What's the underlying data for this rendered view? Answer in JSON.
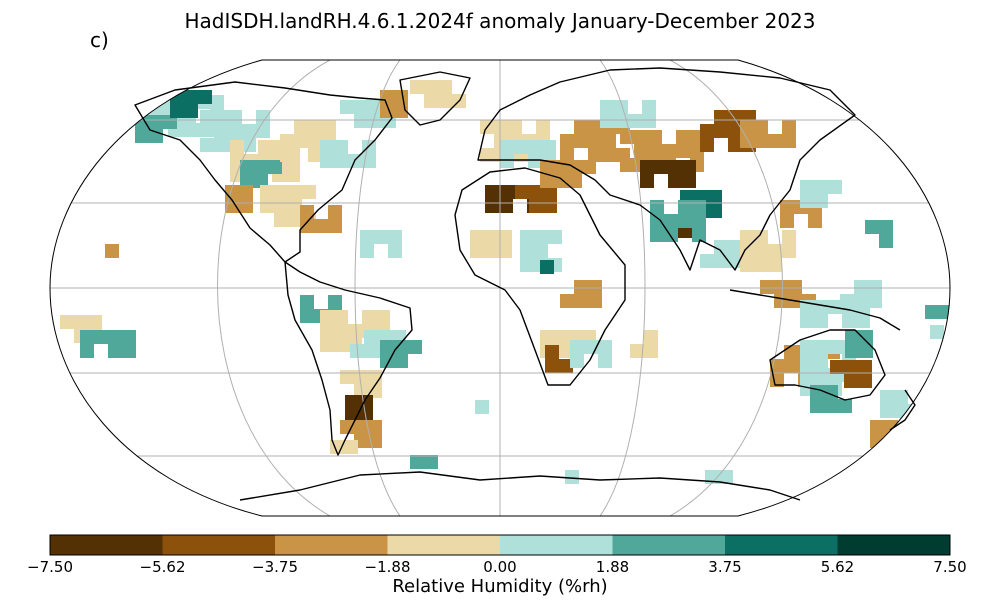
{
  "title": "HadISDH.landRH.4.6.1.2024f anomaly January-December 2023",
  "panel_label": "c)",
  "colorbar": {
    "label": "Relative Humidity (%rh)",
    "ticks": [
      "−7.50",
      "−5.62",
      "−3.75",
      "−1.88",
      "0.00",
      "1.88",
      "3.75",
      "5.62",
      "7.50"
    ],
    "colors": [
      "#543005",
      "#8c510a",
      "#c99446",
      "#ecd9a8",
      "#b0e0da",
      "#4fa89a",
      "#0b6f63",
      "#003c30"
    ]
  },
  "map": {
    "projection": "Robinson",
    "graticule": true,
    "coastlines": true,
    "grid_colors": {
      "strong_dry": "#543005",
      "dry": "#8c510a",
      "mod_dry": "#c99446",
      "slight_dry": "#ecd9a8",
      "slight_wet": "#b0e0da",
      "mod_wet": "#4fa89a",
      "wet": "#0b6f63"
    }
  }
}
